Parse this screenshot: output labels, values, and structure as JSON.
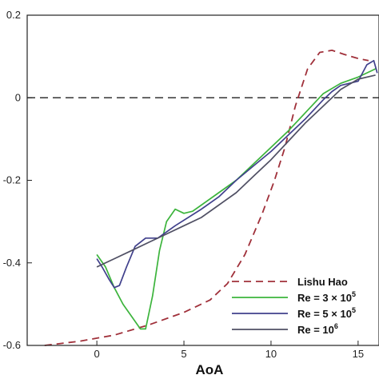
{
  "chart_data": {
    "type": "line",
    "xlabel": "AoA",
    "ylabel": "",
    "xlim": [
      -4,
      16.2
    ],
    "ylim": [
      -0.6,
      0.2
    ],
    "x_ticks": [
      0,
      5,
      10,
      15
    ],
    "y_ticks": [
      -0.6,
      -0.4,
      -0.2,
      0,
      0.2
    ],
    "x_tick_labels": [
      "0",
      "5",
      "10",
      "15"
    ],
    "y_tick_labels": [
      "-0.6",
      "-0.4",
      "-0.2",
      "0",
      "0.2"
    ],
    "zero_line": true,
    "legend_position": "bottom-right",
    "series": [
      {
        "name": "Lishu Hao",
        "color": "#a0303a",
        "style": "dashed",
        "points": [
          [
            -3,
            -0.6
          ],
          [
            -1,
            -0.59
          ],
          [
            1,
            -0.575
          ],
          [
            3,
            -0.55
          ],
          [
            5,
            -0.52
          ],
          [
            6.5,
            -0.49
          ],
          [
            7.5,
            -0.45
          ],
          [
            8.5,
            -0.38
          ],
          [
            9.5,
            -0.28
          ],
          [
            10.2,
            -0.2
          ],
          [
            10.8,
            -0.12
          ],
          [
            11.4,
            -0.02
          ],
          [
            12.1,
            0.07
          ],
          [
            12.8,
            0.11
          ],
          [
            13.5,
            0.115
          ],
          [
            14.2,
            0.105
          ],
          [
            15,
            0.095
          ],
          [
            15.6,
            0.09
          ]
        ]
      },
      {
        "name": "Re = 3 × 10^5",
        "color": "#3cb43c",
        "style": "solid",
        "points": [
          [
            0,
            -0.38
          ],
          [
            0.5,
            -0.41
          ],
          [
            1,
            -0.46
          ],
          [
            1.5,
            -0.5
          ],
          [
            2,
            -0.53
          ],
          [
            2.5,
            -0.56
          ],
          [
            2.8,
            -0.56
          ],
          [
            3.2,
            -0.48
          ],
          [
            3.6,
            -0.37
          ],
          [
            4,
            -0.3
          ],
          [
            4.5,
            -0.27
          ],
          [
            5,
            -0.28
          ],
          [
            5.5,
            -0.275
          ],
          [
            6,
            -0.26
          ],
          [
            7,
            -0.23
          ],
          [
            8,
            -0.2
          ],
          [
            9,
            -0.16
          ],
          [
            10,
            -0.12
          ],
          [
            11,
            -0.08
          ],
          [
            12,
            -0.035
          ],
          [
            13,
            0.01
          ],
          [
            14,
            0.035
          ],
          [
            15,
            0.05
          ],
          [
            16,
            0.07
          ]
        ]
      },
      {
        "name": "Re = 5 × 10^5",
        "color": "#40408c",
        "style": "solid",
        "points": [
          [
            0,
            -0.39
          ],
          [
            0.3,
            -0.41
          ],
          [
            0.7,
            -0.44
          ],
          [
            1,
            -0.46
          ],
          [
            1.3,
            -0.455
          ],
          [
            1.7,
            -0.41
          ],
          [
            2.2,
            -0.36
          ],
          [
            2.8,
            -0.34
          ],
          [
            3.5,
            -0.34
          ],
          [
            4.5,
            -0.31
          ],
          [
            6,
            -0.27
          ],
          [
            7,
            -0.24
          ],
          [
            8,
            -0.2
          ],
          [
            9,
            -0.165
          ],
          [
            10,
            -0.13
          ],
          [
            11,
            -0.09
          ],
          [
            12,
            -0.05
          ],
          [
            13,
            -0.005
          ],
          [
            13.5,
            0.015
          ],
          [
            14,
            0.03
          ],
          [
            15,
            0.04
          ],
          [
            15.5,
            0.08
          ],
          [
            15.9,
            0.09
          ],
          [
            16.1,
            0.06
          ]
        ]
      },
      {
        "name": "Re = 10^6",
        "color": "#505064",
        "style": "solid",
        "points": [
          [
            0,
            -0.41
          ],
          [
            1,
            -0.39
          ],
          [
            2,
            -0.37
          ],
          [
            3,
            -0.35
          ],
          [
            4,
            -0.33
          ],
          [
            5,
            -0.31
          ],
          [
            6,
            -0.29
          ],
          [
            7,
            -0.26
          ],
          [
            8,
            -0.23
          ],
          [
            9,
            -0.19
          ],
          [
            10,
            -0.15
          ],
          [
            11,
            -0.105
          ],
          [
            12,
            -0.06
          ],
          [
            13,
            -0.02
          ],
          [
            14,
            0.02
          ],
          [
            15,
            0.045
          ],
          [
            16,
            0.055
          ]
        ]
      }
    ],
    "legend": [
      {
        "label": "Lishu Hao"
      },
      {
        "label": "Re = 3 × 10",
        "sup": "5"
      },
      {
        "label": "Re = 5 × 10",
        "sup": "5"
      },
      {
        "label": "Re = 10",
        "sup": "6"
      }
    ]
  }
}
